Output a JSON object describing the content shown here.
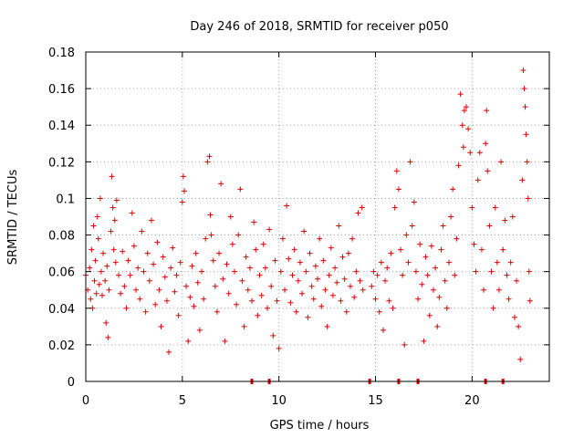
{
  "chart_data": {
    "type": "scatter",
    "title": "Day 246 of 2018, SRMTID for receiver p050",
    "xlabel": "GPS time / hours",
    "ylabel": "SRMTID / TECUs",
    "xlim": [
      0,
      24
    ],
    "ylim": [
      0,
      0.18
    ],
    "xticks": [
      0,
      5,
      10,
      15,
      20
    ],
    "xtick_labels": [
      "0",
      "5",
      "10",
      "15",
      "20"
    ],
    "yticks": [
      0,
      0.02,
      0.04,
      0.06,
      0.08,
      0.1,
      0.12,
      0.14,
      0.16,
      0.18
    ],
    "ytick_labels": [
      "0",
      "0.02",
      "0.04",
      "0.06",
      "0.08",
      "0.1",
      "0.12",
      "0.14",
      "0.16",
      "0.18"
    ],
    "grid": true,
    "marker": "+",
    "color": "#e00000",
    "series": [
      {
        "name": "p050",
        "points": [
          [
            0.0,
            0.058
          ],
          [
            0.1,
            0.05
          ],
          [
            0.2,
            0.062
          ],
          [
            0.25,
            0.045
          ],
          [
            0.3,
            0.072
          ],
          [
            0.35,
            0.04
          ],
          [
            0.4,
            0.085
          ],
          [
            0.45,
            0.055
          ],
          [
            0.5,
            0.066
          ],
          [
            0.55,
            0.048
          ],
          [
            0.6,
            0.09
          ],
          [
            0.65,
            0.078
          ],
          [
            0.7,
            0.053
          ],
          [
            0.75,
            0.1
          ],
          [
            0.8,
            0.06
          ],
          [
            0.85,
            0.047
          ],
          [
            0.9,
            0.07
          ],
          [
            1.0,
            0.055
          ],
          [
            1.05,
            0.032
          ],
          [
            1.1,
            0.063
          ],
          [
            1.15,
            0.024
          ],
          [
            1.2,
            0.05
          ],
          [
            1.3,
            0.082
          ],
          [
            1.35,
            0.112
          ],
          [
            1.4,
            0.095
          ],
          [
            1.45,
            0.072
          ],
          [
            1.5,
            0.088
          ],
          [
            1.55,
            0.065
          ],
          [
            1.6,
            0.099
          ],
          [
            1.7,
            0.058
          ],
          [
            1.8,
            0.048
          ],
          [
            1.9,
            0.071
          ],
          [
            2.0,
            0.052
          ],
          [
            2.1,
            0.04
          ],
          [
            2.2,
            0.066
          ],
          [
            2.3,
            0.058
          ],
          [
            2.4,
            0.092
          ],
          [
            2.5,
            0.074
          ],
          [
            2.6,
            0.05
          ],
          [
            2.7,
            0.062
          ],
          [
            2.8,
            0.045
          ],
          [
            2.9,
            0.082
          ],
          [
            3.0,
            0.06
          ],
          [
            3.1,
            0.038
          ],
          [
            3.2,
            0.07
          ],
          [
            3.3,
            0.055
          ],
          [
            3.4,
            0.088
          ],
          [
            3.5,
            0.064
          ],
          [
            3.6,
            0.042
          ],
          [
            3.7,
            0.076
          ],
          [
            3.8,
            0.05
          ],
          [
            3.9,
            0.03
          ],
          [
            4.0,
            0.068
          ],
          [
            4.1,
            0.057
          ],
          [
            4.2,
            0.044
          ],
          [
            4.3,
            0.016
          ],
          [
            4.4,
            0.062
          ],
          [
            4.5,
            0.073
          ],
          [
            4.6,
            0.049
          ],
          [
            4.7,
            0.058
          ],
          [
            4.8,
            0.036
          ],
          [
            4.9,
            0.065
          ],
          [
            5.0,
            0.098
          ],
          [
            5.05,
            0.112
          ],
          [
            5.1,
            0.104
          ],
          [
            5.2,
            0.052
          ],
          [
            5.3,
            0.022
          ],
          [
            5.4,
            0.046
          ],
          [
            5.5,
            0.063
          ],
          [
            5.6,
            0.041
          ],
          [
            5.7,
            0.07
          ],
          [
            5.8,
            0.054
          ],
          [
            5.9,
            0.028
          ],
          [
            6.0,
            0.06
          ],
          [
            6.1,
            0.045
          ],
          [
            6.2,
            0.078
          ],
          [
            6.3,
            0.12
          ],
          [
            6.4,
            0.123
          ],
          [
            6.45,
            0.091
          ],
          [
            6.5,
            0.08
          ],
          [
            6.6,
            0.066
          ],
          [
            6.7,
            0.052
          ],
          [
            6.8,
            0.038
          ],
          [
            6.9,
            0.07
          ],
          [
            7.0,
            0.108
          ],
          [
            7.1,
            0.056
          ],
          [
            7.2,
            0.022
          ],
          [
            7.3,
            0.064
          ],
          [
            7.4,
            0.048
          ],
          [
            7.5,
            0.09
          ],
          [
            7.6,
            0.075
          ],
          [
            7.7,
            0.06
          ],
          [
            7.8,
            0.042
          ],
          [
            7.9,
            0.08
          ],
          [
            8.0,
            0.105
          ],
          [
            8.1,
            0.055
          ],
          [
            8.2,
            0.03
          ],
          [
            8.3,
            0.068
          ],
          [
            8.4,
            0.05
          ],
          [
            8.5,
            0.062
          ],
          [
            8.6,
            0.044
          ],
          [
            8.7,
            0.087
          ],
          [
            8.8,
            0.072
          ],
          [
            8.9,
            0.036
          ],
          [
            9.0,
            0.058
          ],
          [
            9.1,
            0.047
          ],
          [
            9.2,
            0.075
          ],
          [
            9.3,
            0.062
          ],
          [
            9.4,
            0.04
          ],
          [
            9.5,
            0.083
          ],
          [
            9.6,
            0.052
          ],
          [
            9.7,
            0.025
          ],
          [
            9.8,
            0.066
          ],
          [
            9.9,
            0.044
          ],
          [
            10.0,
            0.018
          ],
          [
            10.1,
            0.06
          ],
          [
            10.2,
            0.078
          ],
          [
            10.3,
            0.05
          ],
          [
            10.4,
            0.096
          ],
          [
            10.5,
            0.067
          ],
          [
            10.6,
            0.043
          ],
          [
            10.7,
            0.058
          ],
          [
            10.8,
            0.072
          ],
          [
            10.9,
            0.038
          ],
          [
            11.0,
            0.055
          ],
          [
            11.1,
            0.065
          ],
          [
            11.2,
            0.048
          ],
          [
            11.3,
            0.082
          ],
          [
            11.4,
            0.06
          ],
          [
            11.5,
            0.035
          ],
          [
            11.6,
            0.07
          ],
          [
            11.7,
            0.052
          ],
          [
            11.8,
            0.045
          ],
          [
            11.9,
            0.063
          ],
          [
            12.0,
            0.056
          ],
          [
            12.1,
            0.078
          ],
          [
            12.2,
            0.041
          ],
          [
            12.3,
            0.066
          ],
          [
            12.4,
            0.05
          ],
          [
            12.5,
            0.03
          ],
          [
            12.6,
            0.058
          ],
          [
            12.7,
            0.073
          ],
          [
            12.8,
            0.047
          ],
          [
            12.9,
            0.062
          ],
          [
            13.0,
            0.054
          ],
          [
            13.1,
            0.085
          ],
          [
            13.2,
            0.044
          ],
          [
            13.3,
            0.068
          ],
          [
            13.4,
            0.056
          ],
          [
            13.5,
            0.038
          ],
          [
            13.6,
            0.07
          ],
          [
            13.7,
            0.052
          ],
          [
            13.8,
            0.078
          ],
          [
            13.9,
            0.046
          ],
          [
            14.0,
            0.06
          ],
          [
            14.1,
            0.092
          ],
          [
            14.2,
            0.055
          ],
          [
            14.3,
            0.095
          ],
          [
            14.35,
            0.05
          ],
          [
            14.8,
            0.052
          ],
          [
            14.9,
            0.06
          ],
          [
            15.0,
            0.045
          ],
          [
            15.1,
            0.058
          ],
          [
            15.2,
            0.038
          ],
          [
            15.3,
            0.065
          ],
          [
            15.4,
            0.028
          ],
          [
            15.5,
            0.055
          ],
          [
            15.6,
            0.062
          ],
          [
            15.7,
            0.044
          ],
          [
            15.8,
            0.07
          ],
          [
            15.9,
            0.04
          ],
          [
            16.0,
            0.095
          ],
          [
            16.1,
            0.115
          ],
          [
            16.2,
            0.105
          ],
          [
            16.3,
            0.072
          ],
          [
            16.4,
            0.058
          ],
          [
            16.5,
            0.02
          ],
          [
            16.6,
            0.08
          ],
          [
            16.7,
            0.065
          ],
          [
            16.8,
            0.12
          ],
          [
            16.9,
            0.085
          ],
          [
            17.0,
            0.098
          ],
          [
            17.1,
            0.06
          ],
          [
            17.2,
            0.045
          ],
          [
            17.3,
            0.075
          ],
          [
            17.4,
            0.053
          ],
          [
            17.5,
            0.022
          ],
          [
            17.6,
            0.068
          ],
          [
            17.7,
            0.058
          ],
          [
            17.8,
            0.036
          ],
          [
            17.9,
            0.074
          ],
          [
            18.0,
            0.05
          ],
          [
            18.1,
            0.062
          ],
          [
            18.2,
            0.03
          ],
          [
            18.3,
            0.046
          ],
          [
            18.4,
            0.072
          ],
          [
            18.5,
            0.085
          ],
          [
            18.6,
            0.055
          ],
          [
            18.7,
            0.04
          ],
          [
            18.8,
            0.065
          ],
          [
            18.9,
            0.09
          ],
          [
            19.0,
            0.105
          ],
          [
            19.1,
            0.058
          ],
          [
            19.2,
            0.078
          ],
          [
            19.3,
            0.118
          ],
          [
            19.4,
            0.157
          ],
          [
            19.5,
            0.14
          ],
          [
            19.55,
            0.128
          ],
          [
            19.6,
            0.148
          ],
          [
            19.7,
            0.15
          ],
          [
            19.8,
            0.138
          ],
          [
            19.9,
            0.125
          ],
          [
            20.0,
            0.095
          ],
          [
            20.1,
            0.075
          ],
          [
            20.2,
            0.06
          ],
          [
            20.3,
            0.11
          ],
          [
            20.4,
            0.125
          ],
          [
            20.5,
            0.072
          ],
          [
            20.6,
            0.05
          ],
          [
            20.7,
            0.13
          ],
          [
            20.75,
            0.148
          ],
          [
            20.8,
            0.115
          ],
          [
            20.9,
            0.085
          ],
          [
            21.0,
            0.06
          ],
          [
            21.1,
            0.04
          ],
          [
            21.2,
            0.095
          ],
          [
            21.3,
            0.065
          ],
          [
            21.4,
            0.05
          ],
          [
            21.5,
            0.12
          ],
          [
            21.6,
            0.072
          ],
          [
            21.7,
            0.088
          ],
          [
            21.8,
            0.058
          ],
          [
            21.9,
            0.045
          ],
          [
            22.0,
            0.065
          ],
          [
            22.1,
            0.09
          ],
          [
            22.2,
            0.035
          ],
          [
            22.3,
            0.055
          ],
          [
            22.4,
            0.03
          ],
          [
            22.5,
            0.012
          ],
          [
            22.6,
            0.11
          ],
          [
            22.65,
            0.17
          ],
          [
            22.7,
            0.16
          ],
          [
            22.75,
            0.15
          ],
          [
            22.8,
            0.135
          ],
          [
            22.85,
            0.12
          ],
          [
            22.9,
            0.1
          ],
          [
            22.95,
            0.06
          ],
          [
            23.0,
            0.044
          ]
        ]
      }
    ],
    "zero_markers_x": [
      8.6,
      9.5,
      14.7,
      16.2,
      17.2,
      20.7,
      21.6
    ]
  }
}
